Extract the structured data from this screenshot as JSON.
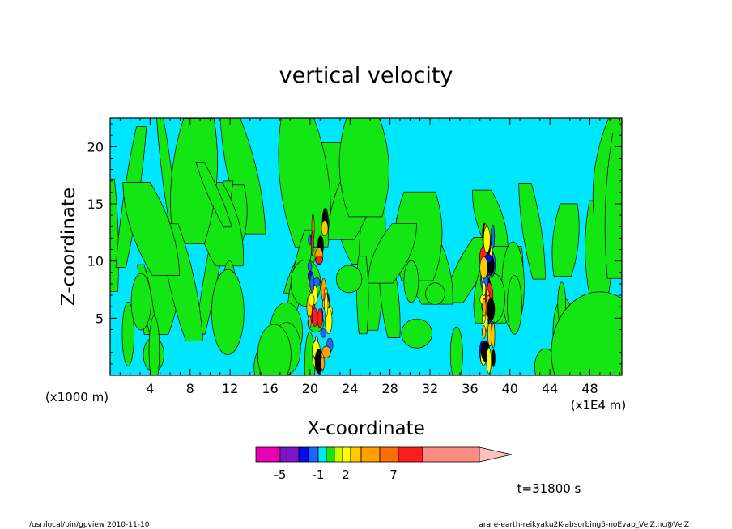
{
  "chart_data": {
    "type": "heatmap",
    "title": "vertical velocity",
    "xlabel": "X-coordinate",
    "ylabel": "Z-coordinate",
    "x_unit_left": "(x1000 m)",
    "x_unit_right": "(x1E4 m)",
    "x_ticks": [
      "4",
      "8",
      "12",
      "16",
      "20",
      "24",
      "28",
      "32",
      "36",
      "40",
      "44",
      "48"
    ],
    "y_ticks": [
      "5",
      "10",
      "15",
      "20"
    ],
    "xlim": [
      0,
      51.2
    ],
    "ylim": [
      0,
      22.5
    ],
    "convective_columns": [
      {
        "x": 21.0,
        "z_bottom": 1.0,
        "z_top": 13.5
      },
      {
        "x": 37.8,
        "z_bottom": 1.0,
        "z_top": 12.5
      }
    ],
    "colorbar": {
      "labels": [
        "-5",
        "-1",
        "2",
        "7"
      ],
      "colors": [
        "#e800b4",
        "#7d14c8",
        "#0a0af0",
        "#1e64ff",
        "#00e6ff",
        "#14e614",
        "#c8ff00",
        "#ffff00",
        "#ffc800",
        "#ffa000",
        "#ff6e00",
        "#ff1e1e",
        "#ff8c82",
        "#ffc0c0"
      ]
    },
    "colors": {
      "positive_bg": "#00e6ff",
      "contour_band": "#14e614"
    },
    "time_label": "t=31800 s",
    "footer_left": "/usr/local/bin/gpview  2010-11-10",
    "footer_right": "arare-earth-reikyaku2K-absorbing5-noEvap_VelZ.nc@VelZ"
  }
}
